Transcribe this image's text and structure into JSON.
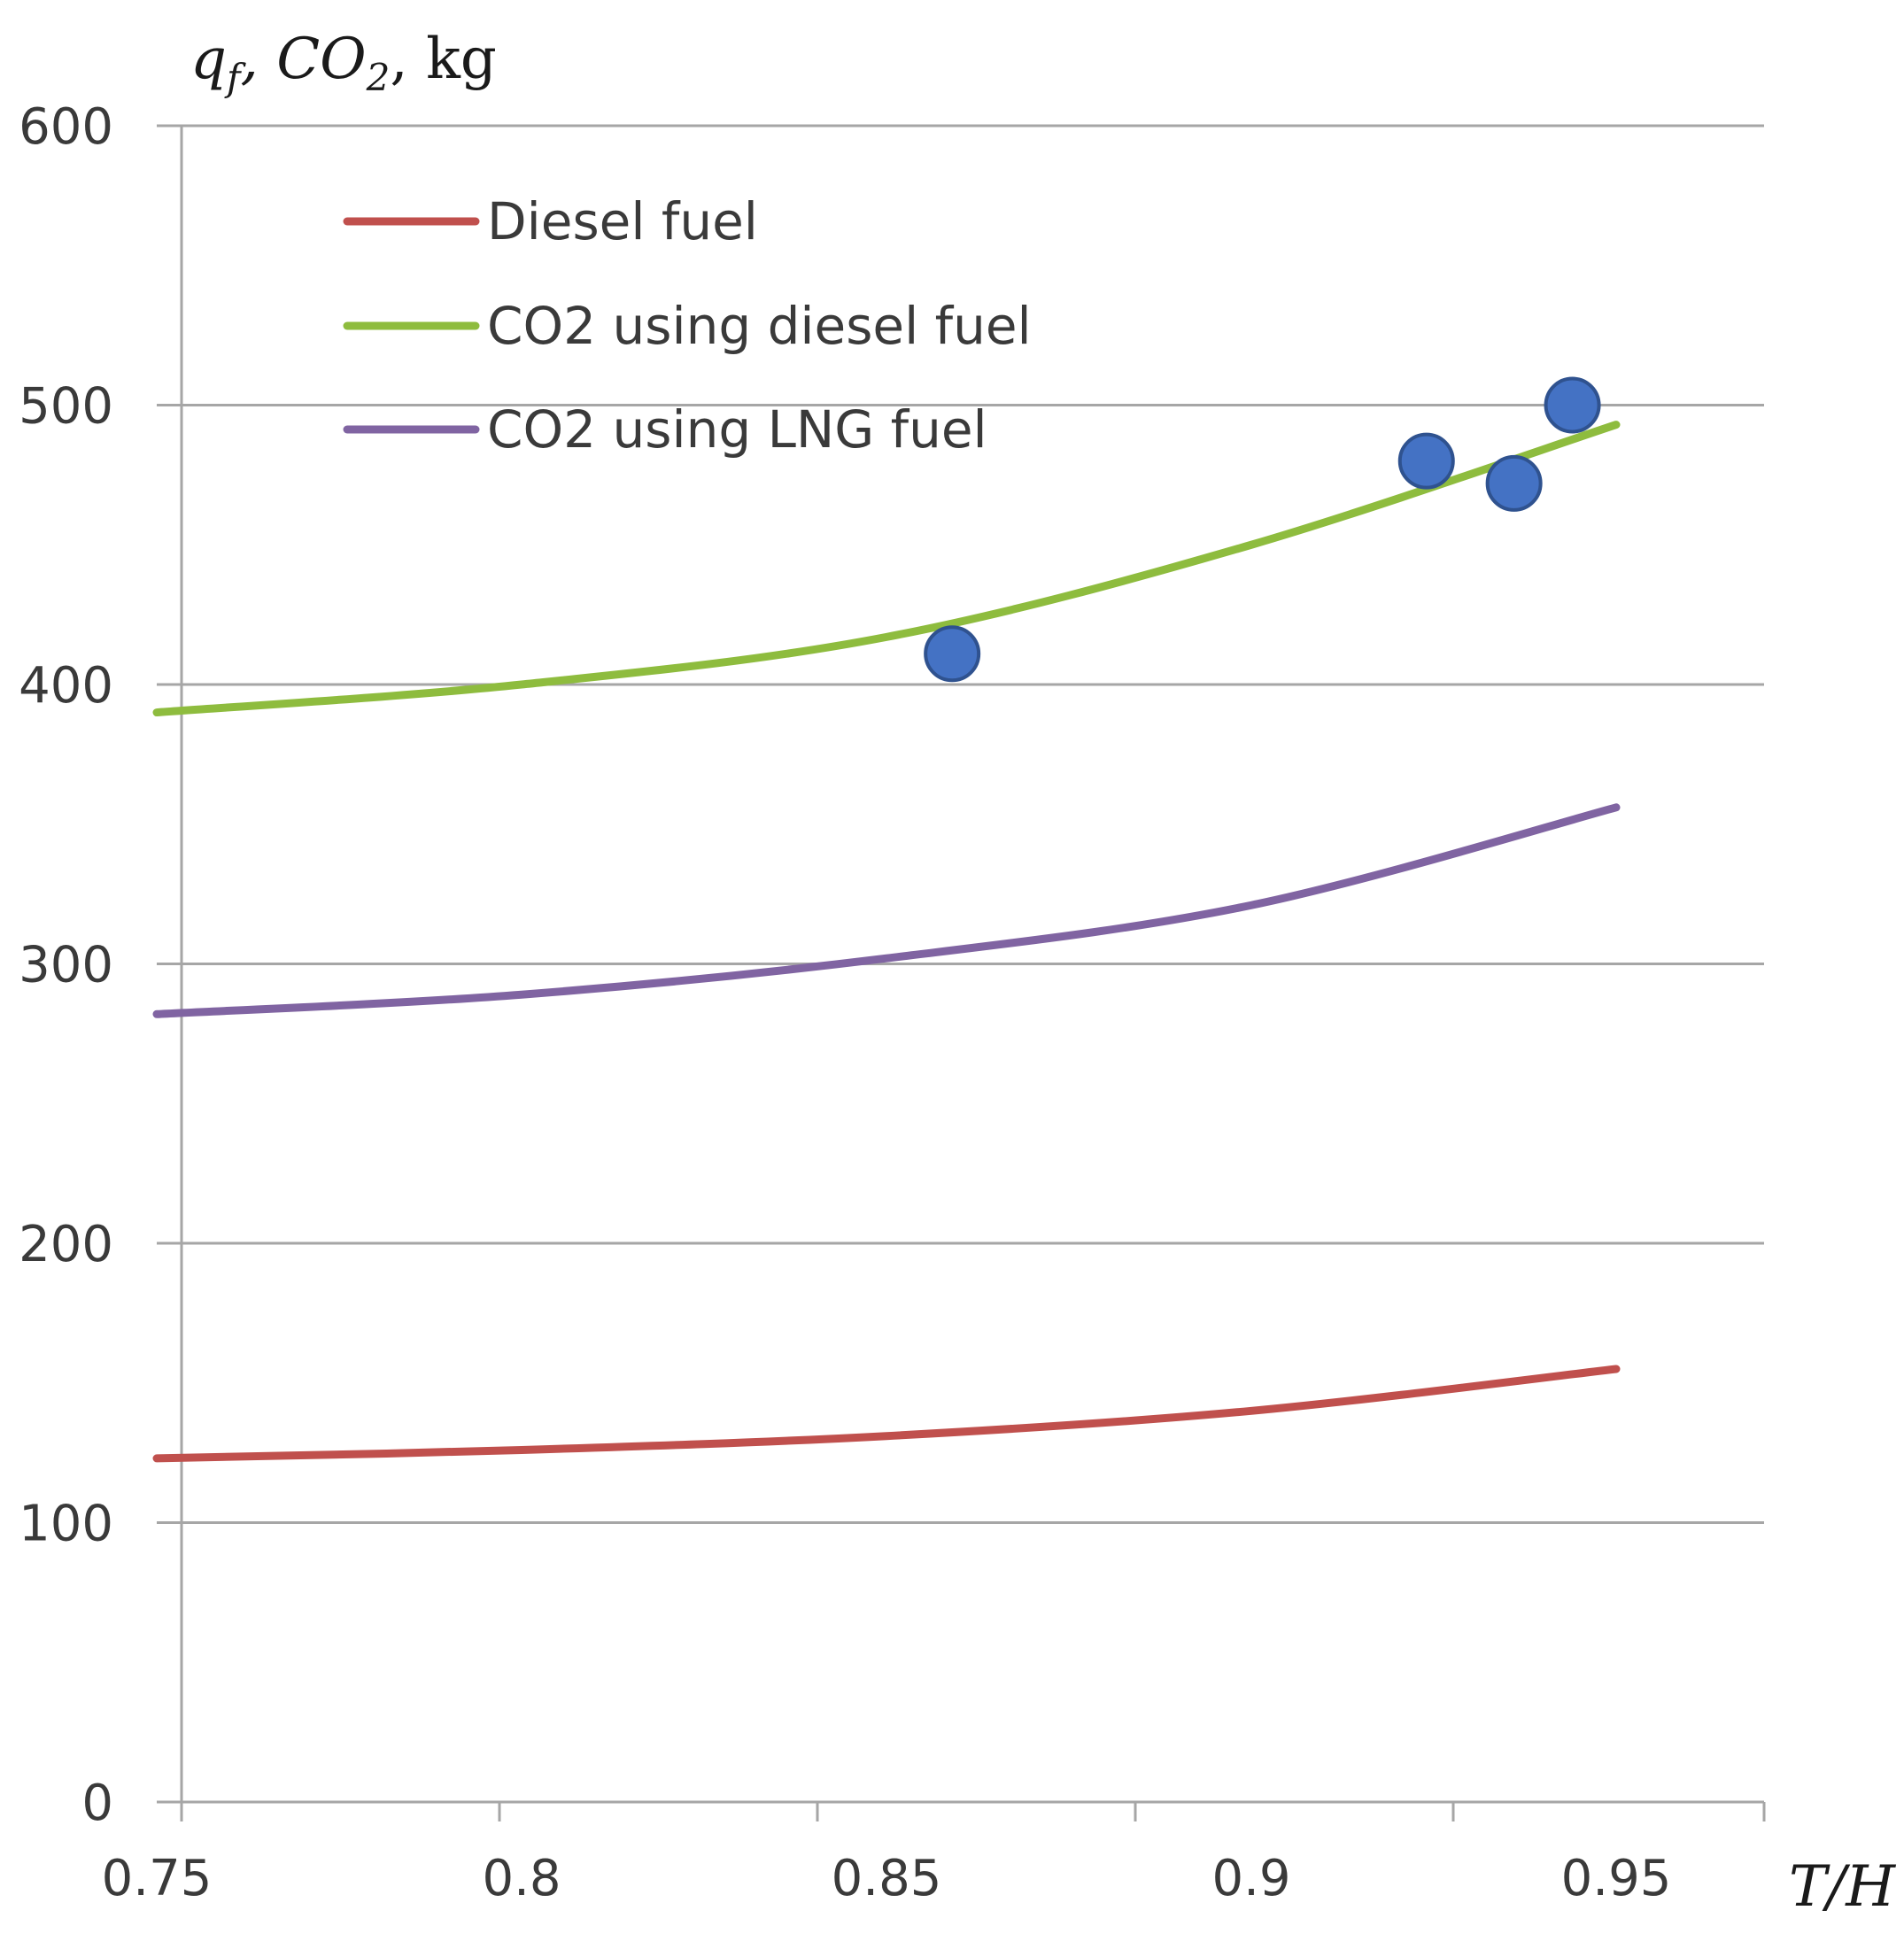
{
  "chart_data": {
    "type": "line",
    "ylabel": "q_f,  CO_2, kg",
    "xlabel": "T/H",
    "x_ticks": [
      "0.75",
      "0.8",
      "0.85",
      "0.9",
      "0.95"
    ],
    "y_ticks": [
      "0",
      "100",
      "200",
      "300",
      "400",
      "500",
      "600"
    ],
    "ylim": [
      0,
      600
    ],
    "grid": "horizontal",
    "legend_position": "top-left",
    "series": [
      {
        "name": "Diesel fuel",
        "color": "#c0504d",
        "points": [
          [
            0.75,
            123
          ],
          [
            0.8,
            126
          ],
          [
            0.85,
            131
          ],
          [
            0.9,
            140
          ],
          [
            0.95,
            155
          ]
        ]
      },
      {
        "name": "CO2 using diesel fuel",
        "color": "#8ebc3e",
        "points": [
          [
            0.75,
            390
          ],
          [
            0.8,
            400
          ],
          [
            0.85,
            417
          ],
          [
            0.9,
            450
          ],
          [
            0.95,
            493
          ]
        ]
      },
      {
        "name": "CO2 using LNG fuel",
        "color": "#8064a2",
        "points": [
          [
            0.75,
            282
          ],
          [
            0.8,
            289
          ],
          [
            0.85,
            302
          ],
          [
            0.9,
            321
          ],
          [
            0.95,
            356
          ]
        ]
      }
    ],
    "markers": {
      "color": "#4472c4",
      "points": [
        [
          0.859,
          411
        ],
        [
          0.924,
          480
        ],
        [
          0.936,
          472
        ],
        [
          0.944,
          500
        ]
      ]
    }
  }
}
